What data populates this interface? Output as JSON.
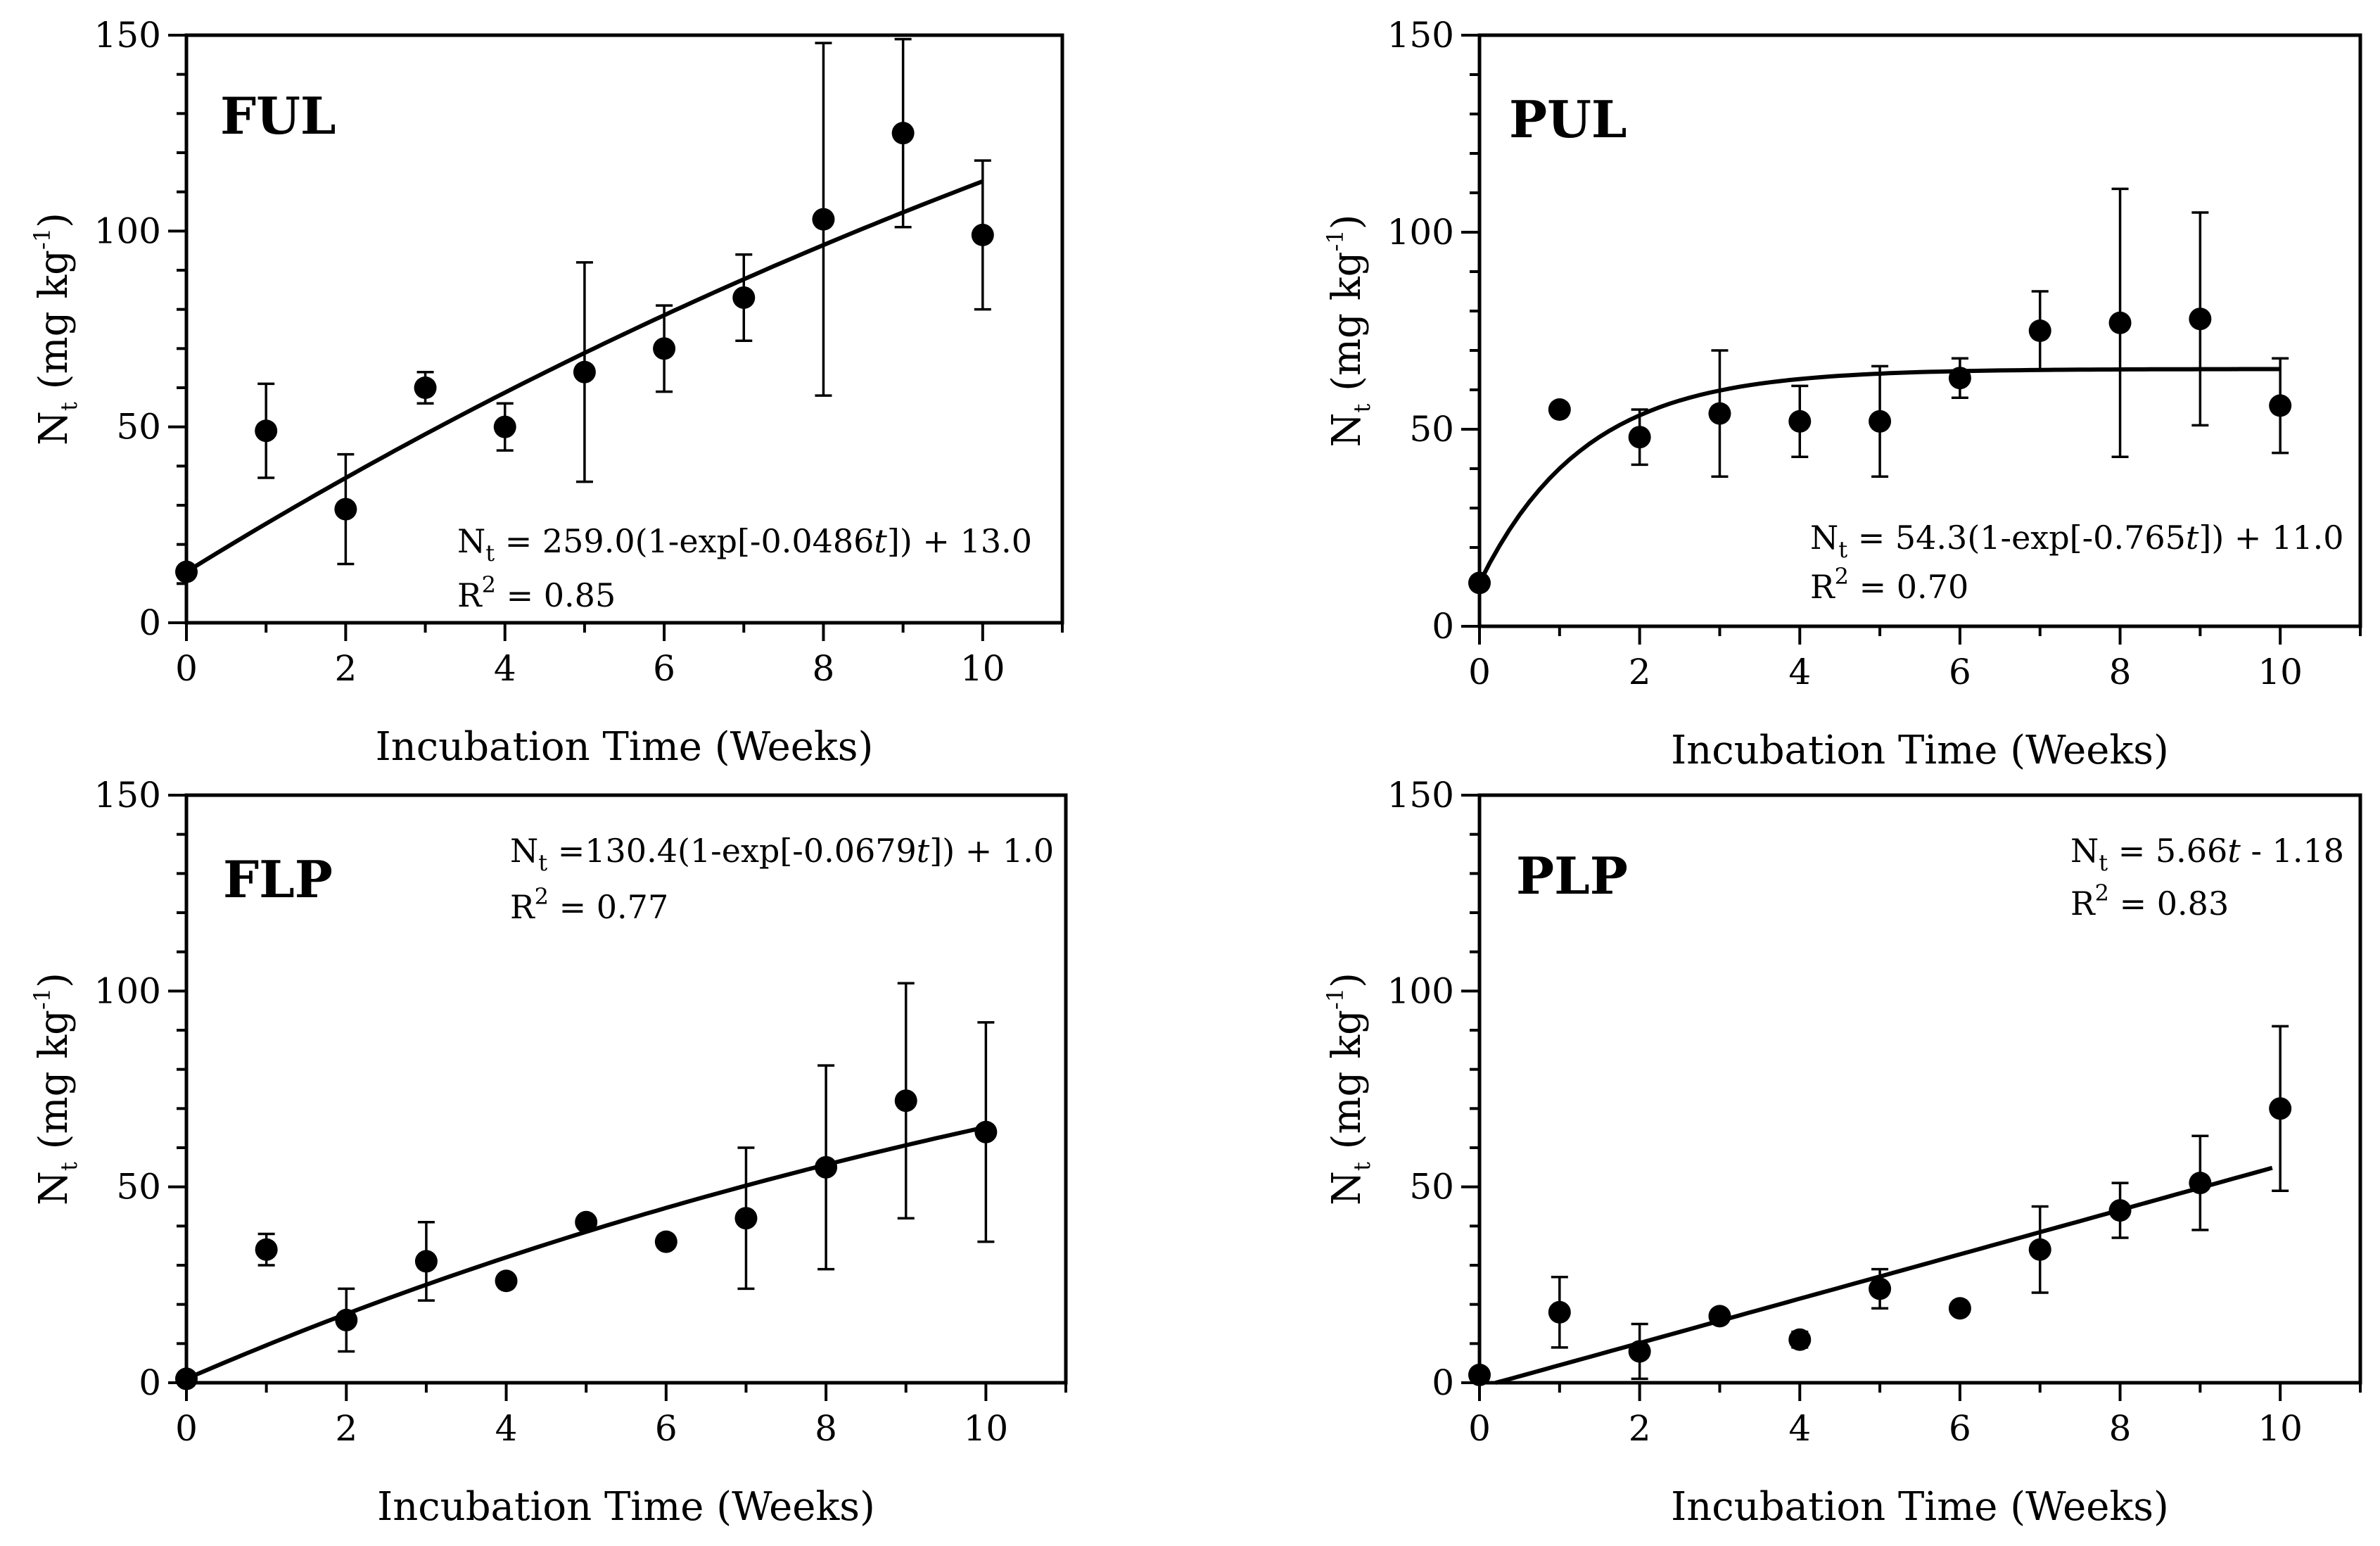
{
  "chart_data": [
    {
      "type": "scatter",
      "panel_label": "FUL",
      "xlabel": "Incubation Time (Weeks)",
      "ylabel": {
        "main": "N",
        "sub": "t",
        "unit_open": " (mg kg",
        "unit_sup": "-1",
        "unit_close": ")"
      },
      "xlim": [
        0,
        11
      ],
      "ylim": [
        0,
        150
      ],
      "xticks": [
        0,
        2,
        4,
        6,
        8,
        10
      ],
      "yticks": [
        0,
        50,
        100,
        150
      ],
      "points": [
        {
          "x": 0,
          "y": 13,
          "err": 0
        },
        {
          "x": 1,
          "y": 49,
          "err": 12
        },
        {
          "x": 2,
          "y": 29,
          "err": 14
        },
        {
          "x": 3,
          "y": 60,
          "err": 4
        },
        {
          "x": 4,
          "y": 50,
          "err": 6
        },
        {
          "x": 5,
          "y": 64,
          "err": 28
        },
        {
          "x": 6,
          "y": 70,
          "err": 11
        },
        {
          "x": 7,
          "y": 83,
          "err": 11
        },
        {
          "x": 8,
          "y": 103,
          "err": 45
        },
        {
          "x": 9,
          "y": 125,
          "err": 24
        },
        {
          "x": 10,
          "y": 99,
          "err": 19
        }
      ],
      "fit": {
        "model": "exp",
        "a": 259.0,
        "k": 0.0486,
        "b": 13.0,
        "x_range": [
          0,
          10
        ]
      },
      "equation": {
        "lhs": "N",
        "lhs_sub": "t",
        "rhs_pre": " = 259.0(1-exp[-0.0486",
        "var": "t",
        "rhs_post": "]) + 13.0"
      },
      "r2": {
        "pre": "R",
        "sup": "2",
        "post": " = 0.85"
      }
    },
    {
      "type": "scatter",
      "panel_label": "PUL",
      "xlabel": "Incubation Time (Weeks)",
      "ylabel": {
        "main": "N",
        "sub": "t",
        "unit_open": " (mg kg",
        "unit_sup": "-1",
        "unit_close": ")"
      },
      "xlim": [
        0,
        11
      ],
      "ylim": [
        0,
        150
      ],
      "xticks": [
        0,
        2,
        4,
        6,
        8,
        10
      ],
      "yticks": [
        0,
        50,
        100,
        150
      ],
      "points": [
        {
          "x": 0,
          "y": 11,
          "err": 0
        },
        {
          "x": 1,
          "y": 55,
          "err": 0
        },
        {
          "x": 2,
          "y": 48,
          "err": 7
        },
        {
          "x": 3,
          "y": 54,
          "err": 16
        },
        {
          "x": 4,
          "y": 52,
          "err": 9
        },
        {
          "x": 5,
          "y": 52,
          "err": 14
        },
        {
          "x": 6,
          "y": 63,
          "err": 5
        },
        {
          "x": 7,
          "y": 75,
          "err": 10
        },
        {
          "x": 8,
          "y": 77,
          "err": 34
        },
        {
          "x": 9,
          "y": 78,
          "err": 27
        },
        {
          "x": 10,
          "y": 56,
          "err": 12
        }
      ],
      "fit": {
        "model": "exp",
        "a": 54.3,
        "k": 0.765,
        "b": 11.0,
        "x_range": [
          0,
          10
        ]
      },
      "equation": {
        "lhs": "N",
        "lhs_sub": "t",
        "rhs_pre": " = 54.3(1-exp[-0.765",
        "var": "t",
        "rhs_post": "]) + 11.0"
      },
      "r2": {
        "pre": "R",
        "sup": "2",
        "post": " = 0.70"
      }
    },
    {
      "type": "scatter",
      "panel_label": "FLP",
      "xlabel": "Incubation Time (Weeks)",
      "ylabel": {
        "main": "N",
        "sub": "t",
        "unit_open": " (mg kg",
        "unit_sup": "-1",
        "unit_close": ")"
      },
      "xlim": [
        0,
        11
      ],
      "ylim": [
        0,
        150
      ],
      "xticks": [
        0,
        2,
        4,
        6,
        8,
        10
      ],
      "yticks": [
        0,
        50,
        100,
        150
      ],
      "points": [
        {
          "x": 0,
          "y": 1,
          "err": 0
        },
        {
          "x": 1,
          "y": 34,
          "err": 4
        },
        {
          "x": 2,
          "y": 16,
          "err": 8
        },
        {
          "x": 3,
          "y": 31,
          "err": 10
        },
        {
          "x": 4,
          "y": 26,
          "err": 0
        },
        {
          "x": 5,
          "y": 41,
          "err": 0
        },
        {
          "x": 6,
          "y": 36,
          "err": 0
        },
        {
          "x": 7,
          "y": 42,
          "err": 18
        },
        {
          "x": 8,
          "y": 55,
          "err": 26
        },
        {
          "x": 9,
          "y": 72,
          "err": 30
        },
        {
          "x": 10,
          "y": 64,
          "err": 28
        }
      ],
      "fit": {
        "model": "exp",
        "a": 130.4,
        "k": 0.0679,
        "b": 1.0,
        "x_range": [
          0,
          10
        ]
      },
      "equation": {
        "lhs": "N",
        "lhs_sub": "t",
        "rhs_pre": " =130.4(1-exp[-0.0679",
        "var": "t",
        "rhs_post": "]) + 1.0"
      },
      "r2": {
        "pre": "R",
        "sup": "2",
        "post": " = 0.77"
      }
    },
    {
      "type": "scatter",
      "panel_label": "PLP",
      "xlabel": "Incubation Time (Weeks)",
      "ylabel": {
        "main": "N",
        "sub": "t",
        "unit_open": " (mg kg",
        "unit_sup": "-1",
        "unit_close": ")"
      },
      "xlim": [
        0,
        11
      ],
      "ylim": [
        0,
        150
      ],
      "xticks": [
        0,
        2,
        4,
        6,
        8,
        10
      ],
      "yticks": [
        0,
        50,
        100,
        150
      ],
      "points": [
        {
          "x": 0,
          "y": 2,
          "err": 0
        },
        {
          "x": 1,
          "y": 18,
          "err": 9
        },
        {
          "x": 2,
          "y": 8,
          "err": 7
        },
        {
          "x": 3,
          "y": 17,
          "err": 0
        },
        {
          "x": 4,
          "y": 11,
          "err": 2
        },
        {
          "x": 5,
          "y": 24,
          "err": 5
        },
        {
          "x": 6,
          "y": 19,
          "err": 0
        },
        {
          "x": 7,
          "y": 34,
          "err": 11
        },
        {
          "x": 8,
          "y": 44,
          "err": 7
        },
        {
          "x": 9,
          "y": 51,
          "err": 12
        },
        {
          "x": 10,
          "y": 70,
          "err": 21
        }
      ],
      "fit": {
        "model": "linear",
        "slope": 5.66,
        "intercept": -1.18,
        "x_range": [
          0.2,
          9.9
        ]
      },
      "equation": {
        "lhs": "N",
        "lhs_sub": "t",
        "rhs_pre": " = 5.66",
        "var": "t",
        "rhs_post": " - 1.18"
      },
      "r2": {
        "pre": "R",
        "sup": "2",
        "post": " = 0.83"
      }
    }
  ]
}
